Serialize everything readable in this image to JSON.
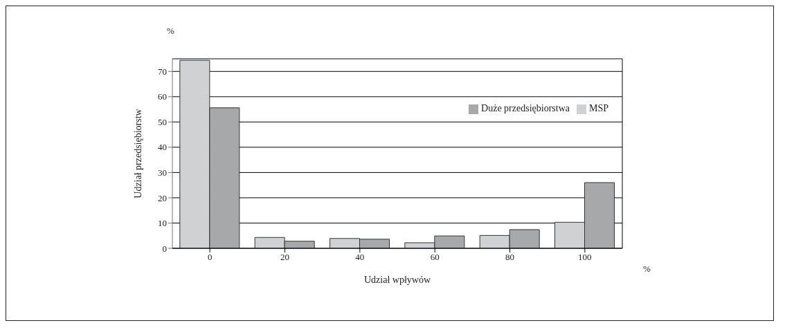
{
  "chart_data": {
    "type": "bar",
    "xlabel": "Udział wpływów",
    "ylabel": "Udział przedsiębiorstw",
    "categories": [
      "0",
      "20",
      "40",
      "60",
      "80",
      "100"
    ],
    "series": [
      {
        "name": "MSP",
        "color": "#d0d1d3",
        "values": [
          74.4,
          4.3,
          3.9,
          2.2,
          5.1,
          10.3
        ]
      },
      {
        "name": "Duże przedsiębiorstwa",
        "color": "#a7a8aa",
        "values": [
          55.6,
          2.8,
          3.6,
          4.9,
          7.4,
          26.0
        ]
      }
    ],
    "ylim": [
      0,
      75
    ],
    "yticks": [
      0,
      10,
      20,
      30,
      40,
      50,
      60,
      70
    ],
    "grid": "y",
    "legend": "top right",
    "annotations": [
      "%",
      "%"
    ]
  }
}
